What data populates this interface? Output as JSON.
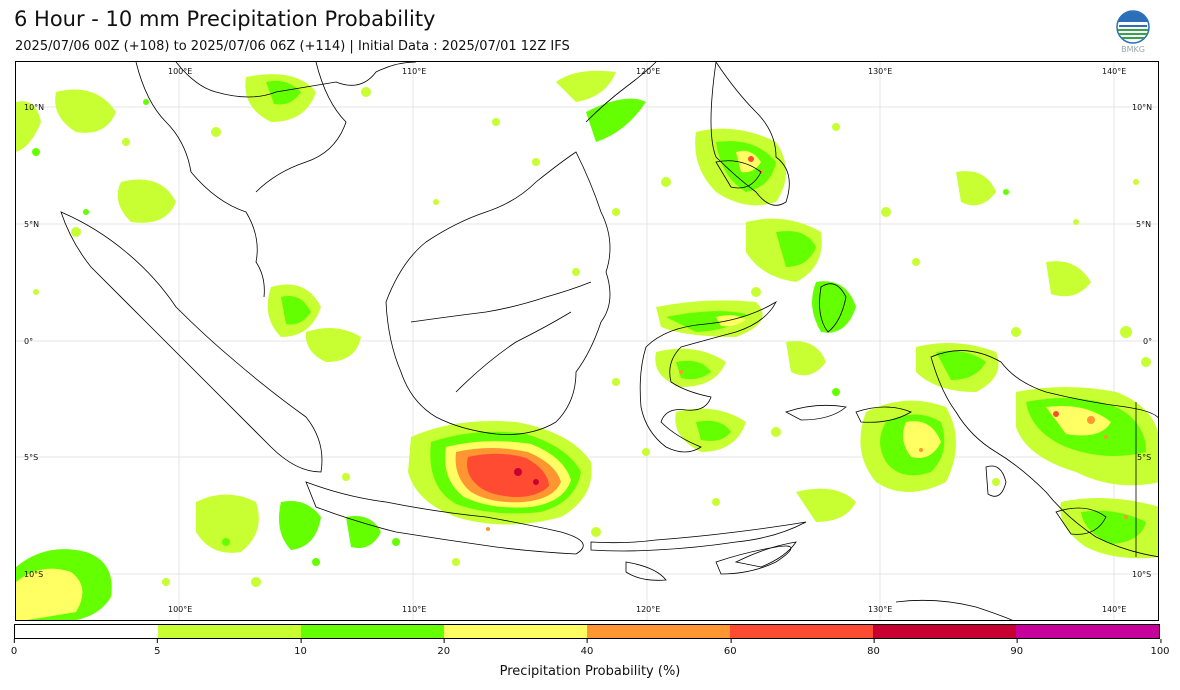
{
  "header": {
    "title": "6 Hour - 10 mm Precipitation Probability",
    "subtitle": "2025/07/06 00Z (+108) to 2025/07/06 06Z (+114) | Initial Data : 2025/07/01 12Z IFS",
    "logo_text": "BMKG"
  },
  "map": {
    "top_lon_labels": [
      "100°E",
      "110°E",
      "120°E",
      "130°E",
      "140°E"
    ],
    "bottom_lon_labels": [
      "100°E",
      "110°E",
      "120°E",
      "130°E",
      "140°E"
    ],
    "left_lat_labels": [
      "10°N",
      "5°N",
      "0°",
      "5°S",
      "10°S"
    ],
    "right_lat_labels": [
      "10°N",
      "5°N",
      "0°",
      "5°S",
      "10°S"
    ]
  },
  "colorbar": {
    "colors": [
      "#ffffff",
      "#c8ff32",
      "#64ff00",
      "#ffff64",
      "#ff9632",
      "#ff4b32",
      "#c80032",
      "#c8009b"
    ],
    "ticks": [
      "0",
      "5",
      "10",
      "20",
      "40",
      "60",
      "80",
      "90",
      "100"
    ],
    "label": "Precipitation Probability (%)"
  }
}
